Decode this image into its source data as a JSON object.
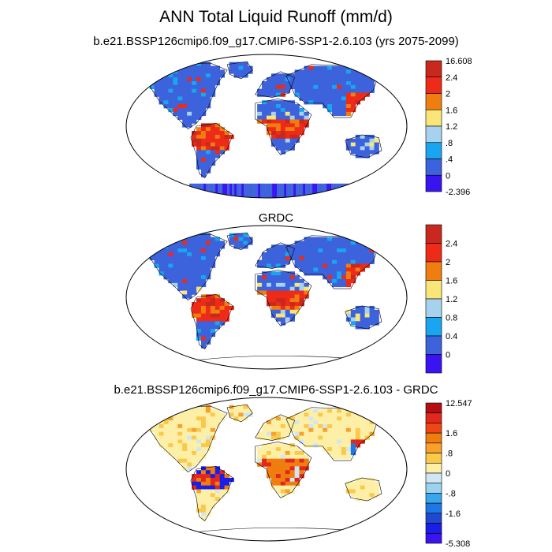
{
  "page": {
    "main_title": "ANN Total Liquid Runoff (mm/d)"
  },
  "panels": [
    {
      "title": "b.e21.BSSP126cmip6.f09_g17.CMIP6-SSP1-2.6.103 (yrs 2075-2099)",
      "colorbar": {
        "labels": [
          "16.608",
          "2.4",
          "2",
          "1.6",
          "1.2",
          ".8",
          ".4",
          "0",
          "-2.396"
        ],
        "colors": [
          "#c8281e",
          "#ee2a18",
          "#f07d0f",
          "#fae678",
          "#a6d2ee",
          "#1aa5f0",
          "#3c62dc",
          "#3a14f0"
        ]
      }
    },
    {
      "title": "GRDC",
      "colorbar": {
        "labels": [
          "2.4",
          "2",
          "1.6",
          "1.2",
          "0.8",
          "0.4",
          "0"
        ],
        "colors": [
          "#c8281e",
          "#ee2a18",
          "#f07d0f",
          "#fae678",
          "#a6d2ee",
          "#1aa5f0",
          "#3c62dc",
          "#3a14f0"
        ]
      }
    },
    {
      "title": "b.e21.BSSP126cmip6.f09_g17.CMIP6-SSP1-2.6.103 - GRDC",
      "colorbar": {
        "labels": [
          "12.547",
          "1.6",
          ".8",
          "0",
          "-.8",
          "-1.6",
          "-5.308"
        ],
        "colors": [
          "#b40e14",
          "#e0281c",
          "#ee4614",
          "#f07d0f",
          "#f8a02a",
          "#fac84a",
          "#fdf0a6",
          "#cfe6f4",
          "#9ad2f0",
          "#38a6ec",
          "#1c78e6",
          "#2048d2",
          "#1a1ee6",
          "#3a14f0"
        ]
      }
    }
  ]
}
